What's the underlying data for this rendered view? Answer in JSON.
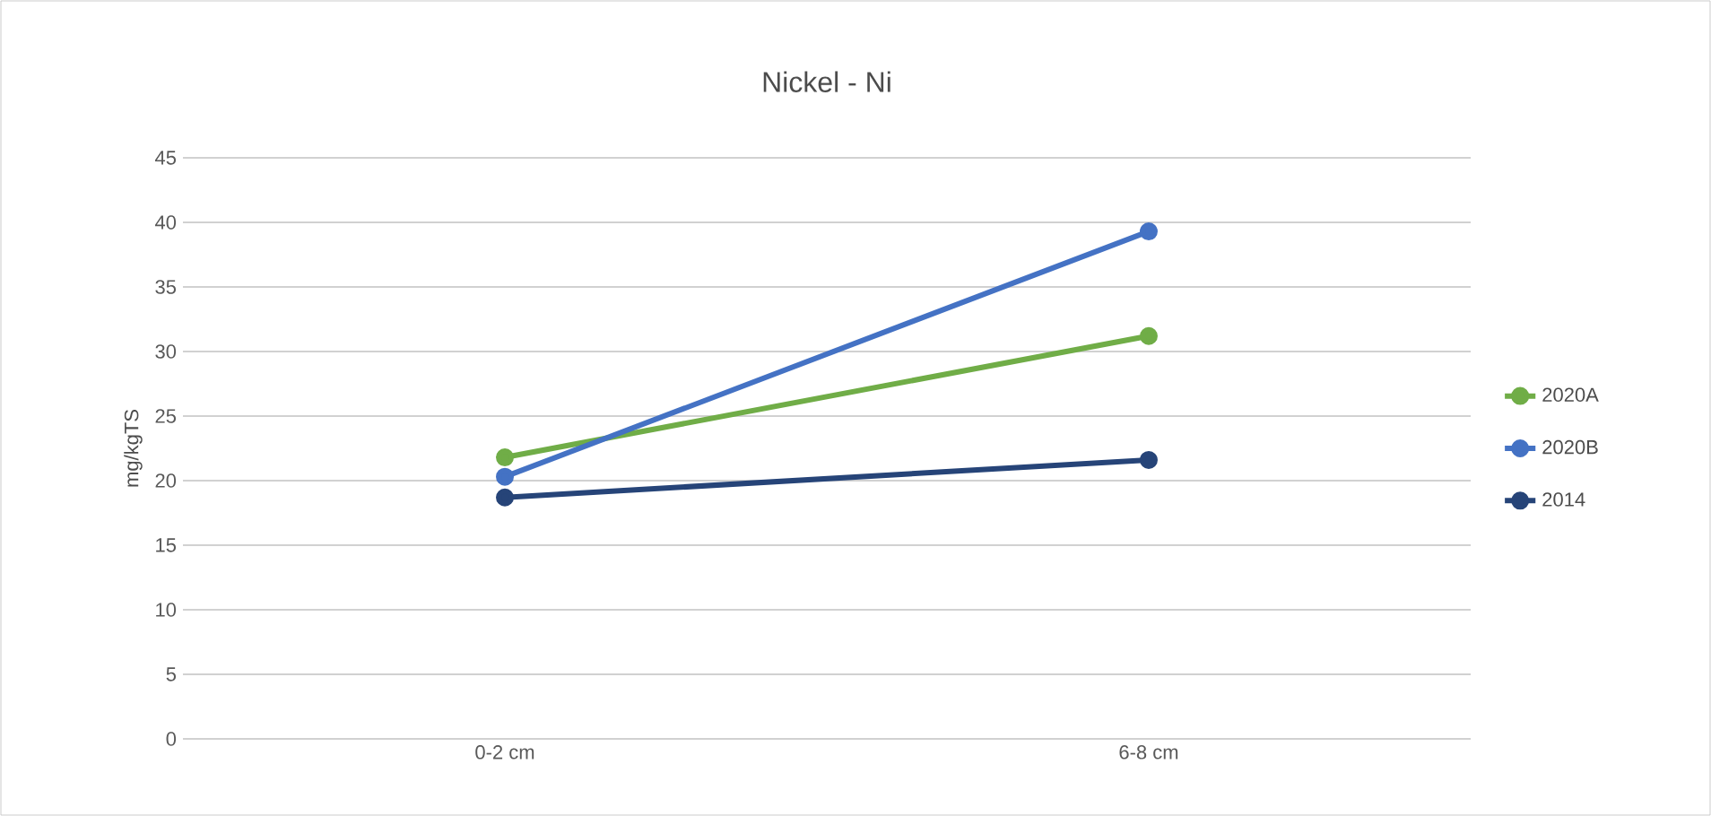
{
  "chart_data": {
    "type": "line",
    "title": "Nickel - Ni",
    "ylabel": "mg/kgTS",
    "categories": [
      "0-2 cm",
      "6-8 cm"
    ],
    "series": [
      {
        "name": "2020A",
        "color": "#70ad47",
        "values": [
          21.8,
          31.2
        ]
      },
      {
        "name": "2020B",
        "color": "#4472c4",
        "values": [
          20.3,
          39.3
        ]
      },
      {
        "name": "2014",
        "color": "#264478",
        "values": [
          18.7,
          21.6
        ]
      }
    ],
    "ylim": [
      0,
      45
    ],
    "yticks": [
      0,
      5,
      10,
      15,
      20,
      25,
      30,
      35,
      40,
      45
    ],
    "grid": "y",
    "legend": "right",
    "marker": "circle",
    "line_style": "solid"
  }
}
